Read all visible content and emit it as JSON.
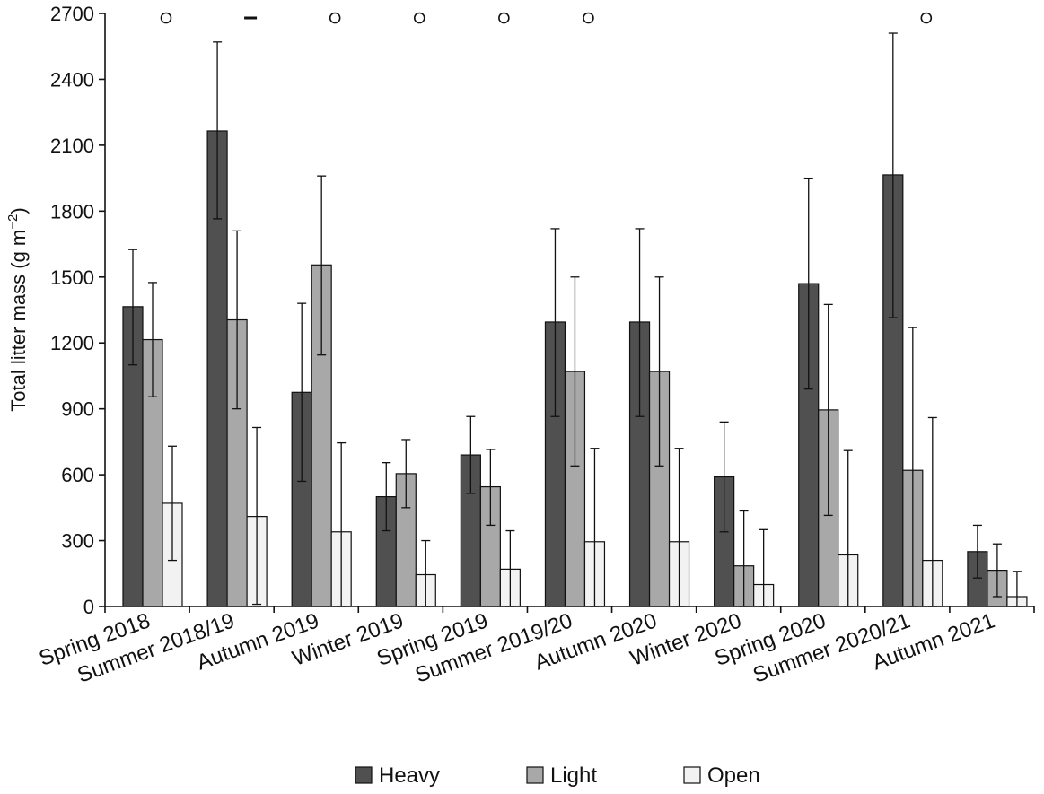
{
  "chart_data": {
    "type": "bar",
    "title": "",
    "xlabel": "",
    "ylabel": "Total litter mass (g m",
    "ylabel_unit_sup": "−2",
    "ylabel_close": ")",
    "ylim": [
      0,
      2700
    ],
    "yticks": [
      "0",
      "300",
      "600",
      "900",
      "1200",
      "1500",
      "1800",
      "2100",
      "2400",
      "2700"
    ],
    "grid": false,
    "legend_position": "bottom-center",
    "categories": [
      "Spring 2018",
      "Summer 2018/19",
      "Autumn 2019",
      "Winter 2019",
      "Spring 2019",
      "Summer 2019/20",
      "Autumn 2020",
      "Winter 2020",
      "Spring 2020",
      "Summer 2020/21",
      "Autumn 2021"
    ],
    "series": [
      {
        "name": "Heavy",
        "color": "#505050",
        "values": [
          1365,
          2165,
          975,
          500,
          690,
          1295,
          1295,
          590,
          1470,
          1965,
          250
        ],
        "err_low": [
          1100,
          1765,
          570,
          345,
          515,
          865,
          865,
          340,
          990,
          1315,
          130
        ],
        "err_high": [
          1625,
          2570,
          1380,
          655,
          865,
          1720,
          1720,
          840,
          1950,
          2610,
          370
        ]
      },
      {
        "name": "Light",
        "color": "#a8a8a8",
        "values": [
          1215,
          1305,
          1555,
          605,
          545,
          1070,
          1070,
          185,
          895,
          620,
          165
        ],
        "err_low": [
          955,
          900,
          1145,
          450,
          370,
          640,
          640,
          0,
          415,
          0,
          45
        ],
        "err_high": [
          1475,
          1710,
          1960,
          760,
          715,
          1500,
          1500,
          435,
          1375,
          1270,
          285
        ]
      },
      {
        "name": "Open",
        "color": "#f2f2f2",
        "values": [
          470,
          410,
          340,
          145,
          170,
          295,
          295,
          100,
          235,
          210,
          45
        ],
        "err_low": [
          210,
          10,
          0,
          0,
          0,
          0,
          0,
          0,
          0,
          0,
          0
        ],
        "err_high": [
          730,
          815,
          745,
          300,
          345,
          720,
          720,
          350,
          710,
          860,
          160
        ]
      }
    ],
    "annotations": [
      {
        "category_index": 0,
        "symbol": "circle"
      },
      {
        "category_index": 1,
        "symbol": "dash"
      },
      {
        "category_index": 2,
        "symbol": "circle"
      },
      {
        "category_index": 3,
        "symbol": "circle"
      },
      {
        "category_index": 4,
        "symbol": "circle"
      },
      {
        "category_index": 5,
        "symbol": "circle"
      },
      {
        "category_index": 9,
        "symbol": "circle"
      }
    ]
  }
}
